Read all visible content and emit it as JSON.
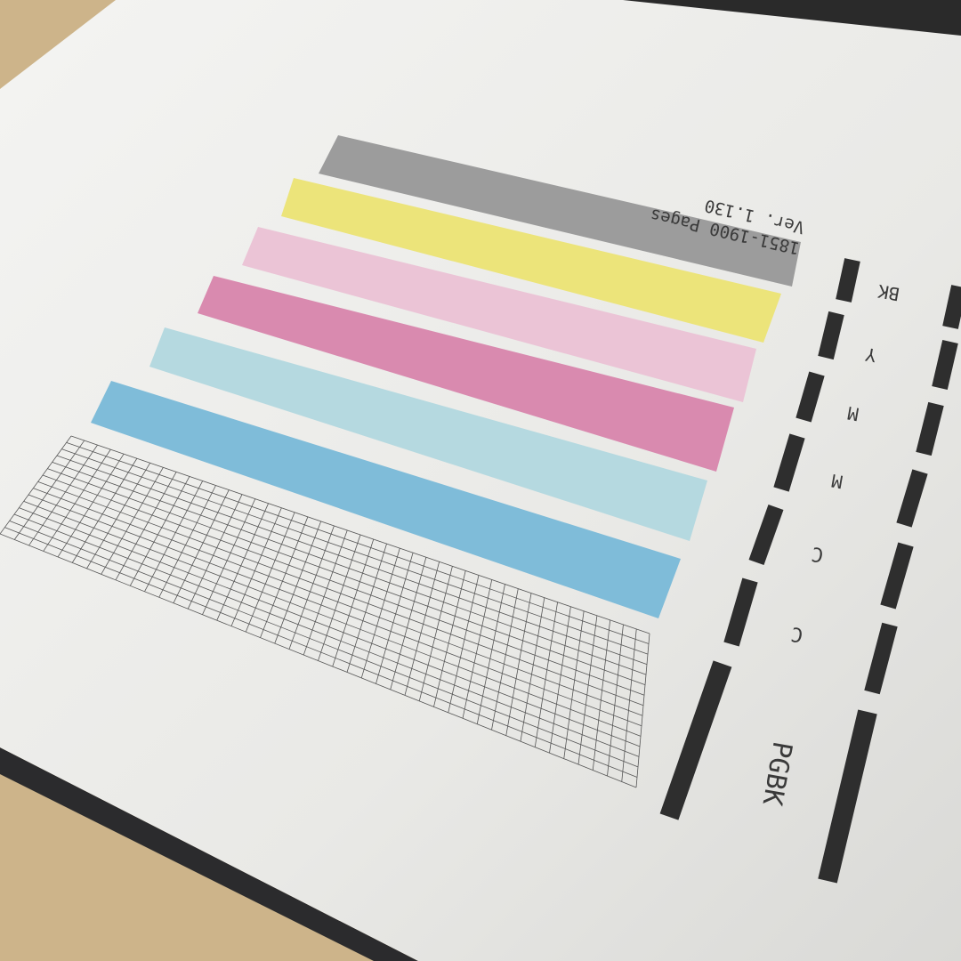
{
  "printout": {
    "version": "Ver. 1.130",
    "pages": "1851-1900 Pages",
    "color_bars": [
      {
        "name": "gray",
        "color": "#9c9c9c"
      },
      {
        "name": "yellow",
        "color": "#ece47a"
      },
      {
        "name": "light-magenta",
        "color": "#ebc4d6"
      },
      {
        "name": "magenta",
        "color": "#d98aaf"
      },
      {
        "name": "light-cyan",
        "color": "#b5d9e0"
      },
      {
        "name": "cyan",
        "color": "#7fbcd9"
      }
    ],
    "nozzle_labels": [
      "BK",
      "Y",
      "M",
      "M",
      "C",
      "C",
      "PGBK"
    ]
  },
  "colors": {
    "paper": "#ecebe8",
    "background": "#cdb48a",
    "ink_black": "#2e2e2e"
  }
}
